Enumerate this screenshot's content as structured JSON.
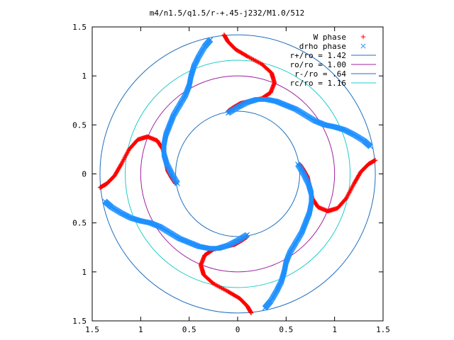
{
  "chart_data": {
    "type": "scatter",
    "title": "m4/n1.5/q1.5/r-+.45-j232/M1.0/512",
    "xlabel": "",
    "ylabel": "",
    "xlim": [
      -1.5,
      1.5
    ],
    "ylim": [
      -1.5,
      1.5
    ],
    "x_ticks": [
      "1.5",
      "1",
      "0.5",
      "0",
      "0.5",
      "1",
      "1.5"
    ],
    "y_ticks": [
      "1.5",
      "1",
      "0.5",
      "0",
      "0.5",
      "1",
      "1.5"
    ],
    "grid": false,
    "legend_position": "top-right",
    "series": [
      {
        "name": "W phase",
        "marker": "plus",
        "color": "#ff0000",
        "arms": [
          [
            [
              -0.14,
              1.42
            ],
            [
              -0.1,
              1.35
            ],
            [
              -0.02,
              1.27
            ],
            [
              0.1,
              1.2
            ],
            [
              0.25,
              1.12
            ],
            [
              0.35,
              1.03
            ],
            [
              0.38,
              0.93
            ],
            [
              0.34,
              0.83
            ],
            [
              0.25,
              0.77
            ],
            [
              0.12,
              0.74
            ],
            [
              0.03,
              0.72
            ],
            [
              -0.04,
              0.68
            ],
            [
              -0.1,
              0.64
            ]
          ],
          [
            [
              1.42,
              0.14
            ],
            [
              1.35,
              0.1
            ],
            [
              1.27,
              0.02
            ],
            [
              1.2,
              -0.1
            ],
            [
              1.12,
              -0.25
            ],
            [
              1.03,
              -0.35
            ],
            [
              0.93,
              -0.38
            ],
            [
              0.83,
              -0.34
            ],
            [
              0.77,
              -0.25
            ],
            [
              0.74,
              -0.12
            ],
            [
              0.72,
              -0.03
            ],
            [
              0.68,
              0.04
            ],
            [
              0.64,
              0.1
            ]
          ],
          [
            [
              0.14,
              -1.42
            ],
            [
              0.1,
              -1.35
            ],
            [
              0.02,
              -1.27
            ],
            [
              -0.1,
              -1.2
            ],
            [
              -0.25,
              -1.12
            ],
            [
              -0.35,
              -1.03
            ],
            [
              -0.38,
              -0.93
            ],
            [
              -0.34,
              -0.83
            ],
            [
              -0.25,
              -0.77
            ],
            [
              -0.12,
              -0.74
            ],
            [
              -0.03,
              -0.72
            ],
            [
              0.04,
              -0.68
            ],
            [
              0.1,
              -0.64
            ]
          ],
          [
            [
              -1.42,
              -0.14
            ],
            [
              -1.35,
              -0.1
            ],
            [
              -1.27,
              -0.02
            ],
            [
              -1.2,
              0.1
            ],
            [
              -1.12,
              0.25
            ],
            [
              -1.03,
              0.35
            ],
            [
              -0.93,
              0.38
            ],
            [
              -0.83,
              0.34
            ],
            [
              -0.77,
              0.25
            ],
            [
              -0.74,
              0.12
            ],
            [
              -0.72,
              0.03
            ],
            [
              -0.68,
              -0.04
            ],
            [
              -0.64,
              -0.1
            ]
          ]
        ]
      },
      {
        "name": "drho phase",
        "marker": "cross",
        "color": "#1e90ff",
        "arms": [
          [
            [
              -0.62,
              -0.1
            ],
            [
              -0.68,
              0.0
            ],
            [
              -0.73,
              0.1
            ],
            [
              -0.76,
              0.2
            ],
            [
              -0.76,
              0.3
            ],
            [
              -0.74,
              0.4
            ],
            [
              -0.7,
              0.5
            ],
            [
              -0.66,
              0.6
            ],
            [
              -0.6,
              0.7
            ],
            [
              -0.54,
              0.8
            ],
            [
              -0.5,
              0.9
            ],
            [
              -0.48,
              1.0
            ],
            [
              -0.45,
              1.1
            ],
            [
              -0.4,
              1.2
            ],
            [
              -0.34,
              1.3
            ],
            [
              -0.28,
              1.37
            ]
          ],
          [
            [
              -0.1,
              0.62
            ],
            [
              0.0,
              0.68
            ],
            [
              0.1,
              0.73
            ],
            [
              0.2,
              0.76
            ],
            [
              0.3,
              0.76
            ],
            [
              0.4,
              0.74
            ],
            [
              0.5,
              0.7
            ],
            [
              0.6,
              0.66
            ],
            [
              0.7,
              0.6
            ],
            [
              0.8,
              0.54
            ],
            [
              0.9,
              0.5
            ],
            [
              1.0,
              0.48
            ],
            [
              1.1,
              0.45
            ],
            [
              1.2,
              0.4
            ],
            [
              1.3,
              0.34
            ],
            [
              1.37,
              0.28
            ]
          ],
          [
            [
              0.62,
              0.1
            ],
            [
              0.68,
              0.0
            ],
            [
              0.73,
              -0.1
            ],
            [
              0.76,
              -0.2
            ],
            [
              0.76,
              -0.3
            ],
            [
              0.74,
              -0.4
            ],
            [
              0.7,
              -0.5
            ],
            [
              0.66,
              -0.6
            ],
            [
              0.6,
              -0.7
            ],
            [
              0.54,
              -0.8
            ],
            [
              0.5,
              -0.9
            ],
            [
              0.48,
              -1.0
            ],
            [
              0.45,
              -1.1
            ],
            [
              0.4,
              -1.2
            ],
            [
              0.34,
              -1.3
            ],
            [
              0.28,
              -1.37
            ]
          ],
          [
            [
              0.1,
              -0.62
            ],
            [
              0.0,
              -0.68
            ],
            [
              -0.1,
              -0.73
            ],
            [
              -0.2,
              -0.76
            ],
            [
              -0.3,
              -0.76
            ],
            [
              -0.4,
              -0.74
            ],
            [
              -0.5,
              -0.7
            ],
            [
              -0.6,
              -0.66
            ],
            [
              -0.7,
              -0.6
            ],
            [
              -0.8,
              -0.54
            ],
            [
              -0.9,
              -0.5
            ],
            [
              -1.0,
              -0.48
            ],
            [
              -1.1,
              -0.45
            ],
            [
              -1.2,
              -0.4
            ],
            [
              -1.3,
              -0.34
            ],
            [
              -1.37,
              -0.28
            ]
          ]
        ]
      }
    ],
    "circles": [
      {
        "label": "r+/ro = 1.42",
        "r": 1.42,
        "color": "#1f6fbf"
      },
      {
        "label": "ro/ro = 1.00",
        "r": 1.0,
        "color": "#a020a0"
      },
      {
        "label": "r-/ro = .64",
        "r": 0.64,
        "color": "#1f6fbf"
      },
      {
        "label": "rc/ro = 1.16",
        "r": 1.16,
        "color": "#22cccc"
      }
    ]
  }
}
